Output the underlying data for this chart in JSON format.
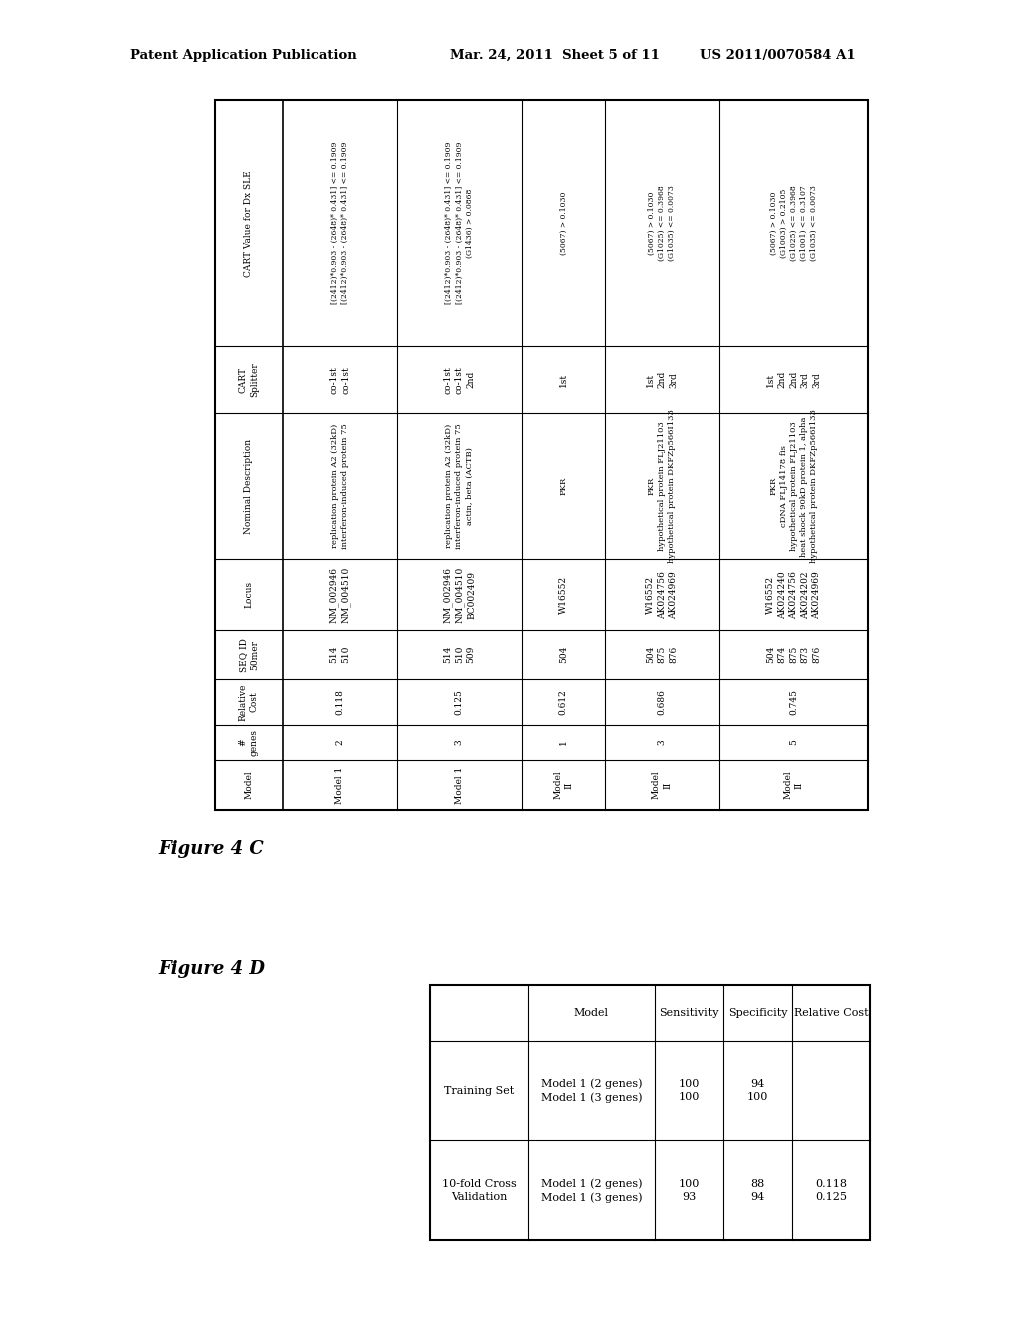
{
  "header_left": "Patent Application Publication",
  "header_mid": "Mar. 24, 2011  Sheet 5 of 11",
  "header_right": "US 2011/0070584 A1",
  "fig4c_label": "Figure 4 C",
  "fig4d_label": "Figure 4 D",
  "table4c": {
    "row_headers": [
      "Model",
      "#\ngenes",
      "Relative\nCost",
      "SEQ ID\n50mer",
      "Locus",
      "Nominal Description",
      "CART\nSplitter",
      "CART Value for Dx SLE"
    ],
    "columns": [
      {
        "model": "Model 1",
        "genes": "2",
        "cost": "0.118",
        "seqid": "514\n510",
        "locus": "NM_002946\nNM_004510",
        "desc": "replication protein A2 (32kD)\ninterferon-induced protein 75",
        "splitter": "co-1st\nco-1st",
        "cart": "[(2412)*0.903 - (2648)* 0.431] <= 0.1909\n[(2412)*0.903 - (2648)* 0.431] <= 0.1909"
      },
      {
        "model": "Model 1",
        "genes": "3",
        "cost": "0.125",
        "seqid": "514\n510\n509",
        "locus": "NM_002946\nNM_004510\nBC002409",
        "desc": "replication protein A2 (32kD)\ninterferon-induced protein 75\nactin, beta (ACTB)",
        "splitter": "co-1st\nco-1st\n2nd",
        "cart": "[(2412)*0.903 - (2648)* 0.431] <= 0.1909\n[(2412)*0.903 - (2648)* 0.431] <= 0.1909\n(G1436) > 0.0868"
      },
      {
        "model": "Model\nII",
        "genes": "1",
        "cost": "0.612",
        "seqid": "504",
        "locus": "W16552",
        "desc": "PKR",
        "splitter": "1st",
        "cart": "(5067) > 0.1030"
      },
      {
        "model": "Model\nII",
        "genes": "3",
        "cost": "0.686",
        "seqid": "504\n875\n876",
        "locus": "W16552\nAK024756\nAK024969",
        "desc": "PKR\nhypothetical protein FLJ21103\nhypothetical protein DKFZp566I133",
        "splitter": "1st\n2nd\n3rd",
        "cart": "(5067) > 0.1030\n(G1025) <= 0.3968\n(G1035) <= 0.0073"
      },
      {
        "model": "Model\nII",
        "genes": "5",
        "cost": "0.745",
        "seqid": "504\n874\n875\n873\n876",
        "locus": "W16552\nAK024240\nAK024756\nAK024202\nAK024969",
        "desc": "PKR\ncDNA FLJ14178 fis\nhypothetical protein FLJ21103\nheat shock 90kD protein 1, alpha\nhypothetical protein DKFZp566I133",
        "splitter": "1st\n2nd\n2nd\n3rd\n3rd",
        "cart": "(5067) > 0.1030\n(G1003) > 0.2105\n(G1025) <= 0.3968\n(G1001) <= 0.3107\n(G1035) <= 0.0073"
      }
    ]
  },
  "table4d": {
    "headers": [
      "",
      "Model",
      "Sensitivity",
      "Specificity",
      "Relative Cost"
    ],
    "rows": [
      [
        "Training Set",
        "Model 1 (2 genes)\nModel 1 (3 genes)",
        "100\n100",
        "94\n100",
        ""
      ],
      [
        "10-fold Cross\nValidation",
        "Model 1 (2 genes)\nModel 1 (3 genes)",
        "100\n93",
        "88\n94",
        "0.118\n0.125"
      ]
    ]
  }
}
